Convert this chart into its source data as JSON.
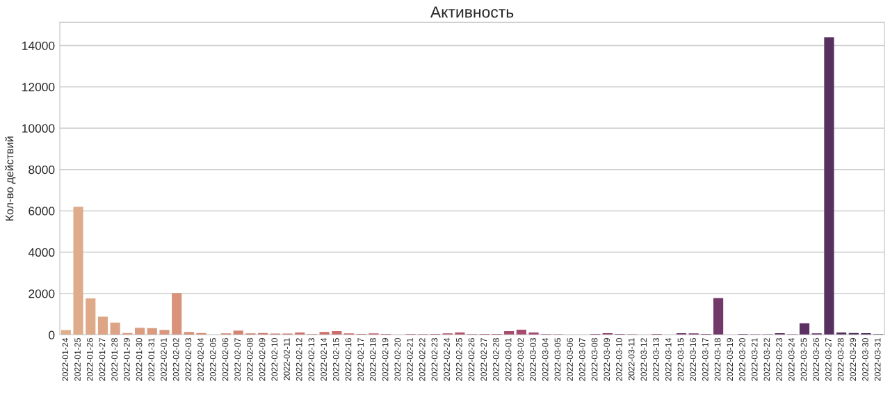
{
  "chart_data": {
    "type": "bar",
    "title": "Активность",
    "ylabel": "Кол-во действий",
    "categories": [
      "2022-01-24",
      "2022-01-25",
      "2022-01-26",
      "2022-01-27",
      "2022-01-28",
      "2022-01-29",
      "2022-01-30",
      "2022-01-31",
      "2022-02-01",
      "2022-02-02",
      "2022-02-03",
      "2022-02-04",
      "2022-02-05",
      "2022-02-06",
      "2022-02-07",
      "2022-02-08",
      "2022-02-09",
      "2022-02-10",
      "2022-02-11",
      "2022-02-12",
      "2022-02-13",
      "2022-02-14",
      "2022-02-15",
      "2022-02-16",
      "2022-02-17",
      "2022-02-18",
      "2022-02-19",
      "2022-02-20",
      "2022-02-21",
      "2022-02-22",
      "2022-02-23",
      "2022-02-24",
      "2022-02-25",
      "2022-02-26",
      "2022-02-27",
      "2022-02-28",
      "2022-03-01",
      "2022-03-02",
      "2022-03-03",
      "2022-03-04",
      "2022-03-05",
      "2022-03-06",
      "2022-03-07",
      "2022-03-08",
      "2022-03-09",
      "2022-03-10",
      "2022-03-11",
      "2022-03-12",
      "2022-03-13",
      "2022-03-14",
      "2022-03-15",
      "2022-03-16",
      "2022-03-17",
      "2022-03-18",
      "2022-03-19",
      "2022-03-20",
      "2022-03-21",
      "2022-03-22",
      "2022-03-23",
      "2022-03-24",
      "2022-03-25",
      "2022-03-26",
      "2022-03-27",
      "2022-03-28",
      "2022-03-29",
      "2022-03-30",
      "2022-03-31"
    ],
    "values": [
      230,
      6200,
      1760,
      880,
      590,
      90,
      340,
      320,
      240,
      2020,
      140,
      90,
      null,
      70,
      210,
      70,
      90,
      60,
      60,
      110,
      40,
      140,
      180,
      70,
      50,
      70,
      50,
      null,
      50,
      40,
      50,
      70,
      110,
      40,
      50,
      50,
      180,
      250,
      110,
      40,
      30,
      null,
      null,
      50,
      80,
      50,
      30,
      null,
      50,
      null,
      80,
      70,
      50,
      1780,
      null,
      50,
      30,
      30,
      80,
      30,
      560,
      70,
      14400,
      110,
      90,
      80,
      40
    ],
    "colors": [
      "#dfaf8c",
      "#deac8a",
      "#dea988",
      "#dda586",
      "#dda385",
      "#dca082",
      "#db9c80",
      "#db997e",
      "#da977d",
      "#da937b",
      "#d99079",
      "#d88d77",
      "#d78a75",
      "#d78774",
      "#d68472",
      "#d58071",
      "#d47d6f",
      "#d37b6e",
      "#d2786e",
      "#d1746d",
      "#d0716c",
      "#cf6f6c",
      "#ce6c6c",
      "#cc696c",
      "#c9656c",
      "#c8636c",
      "#c5606c",
      "#c35d6c",
      "#c05b6c",
      "#be596c",
      "#bb566d",
      "#b8546d",
      "#b5526e",
      "#b1516e",
      "#af506e",
      "#ab4e6e",
      "#a84d6f",
      "#a54b6f",
      "#a24a6f",
      "#9e496f",
      "#9b486f",
      "#98466f",
      "#95456e",
      "#92446e",
      "#8e426e",
      "#8b416e",
      "#88406d",
      "#853f6d",
      "#823d6c",
      "#7e3c6c",
      "#7b3b6b",
      "#783a6b",
      "#75396a",
      "#723869",
      "#6e3768",
      "#6c3667",
      "#683566",
      "#653465",
      "#623364",
      "#5f3263",
      "#5c3162",
      "#593161",
      "#56305f",
      "#542f5f",
      "#512e5d",
      "#4e2d5c",
      "#4b2c5b"
    ],
    "ylim": [
      0,
      15120
    ],
    "yticks": [
      0,
      2000,
      4000,
      6000,
      8000,
      10000,
      12000,
      14000
    ],
    "grid": "y"
  }
}
